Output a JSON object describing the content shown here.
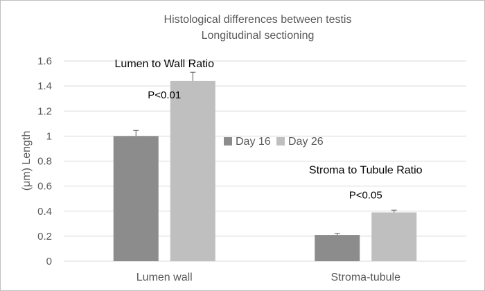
{
  "chart_data": {
    "type": "bar",
    "title": "Histological differences between testis",
    "subtitle": "Longitudinal sectioning",
    "xlabel": "",
    "ylabel": "(μm) Length",
    "categories": [
      "Lumen wall",
      "Stroma-tubule"
    ],
    "series": [
      {
        "name": "Day 16",
        "values": [
          1.0,
          0.21
        ],
        "errors": [
          0.045,
          0.012
        ],
        "color": "#8c8c8c"
      },
      {
        "name": "Day 26",
        "values": [
          1.44,
          0.39
        ],
        "errors": [
          0.07,
          0.018
        ],
        "color": "#bfbfbf"
      }
    ],
    "ylim": [
      0,
      1.6
    ],
    "yticks": [
      "0",
      "0.2",
      "0.4",
      "0.6",
      "0.8",
      "1",
      "1.2",
      "1.4",
      "1.6"
    ],
    "grid": true,
    "legend_position": "center-right",
    "annotations": [
      {
        "text": "Lumen to Wall Ratio",
        "category": 0,
        "y": 1.55
      },
      {
        "text": "P<0.01",
        "category": 0,
        "y": 1.3
      },
      {
        "text": "Stroma to Tubule Ratio",
        "category": 1,
        "y": 0.7
      },
      {
        "text": "P<0.05",
        "category": 1,
        "y": 0.5
      }
    ]
  }
}
